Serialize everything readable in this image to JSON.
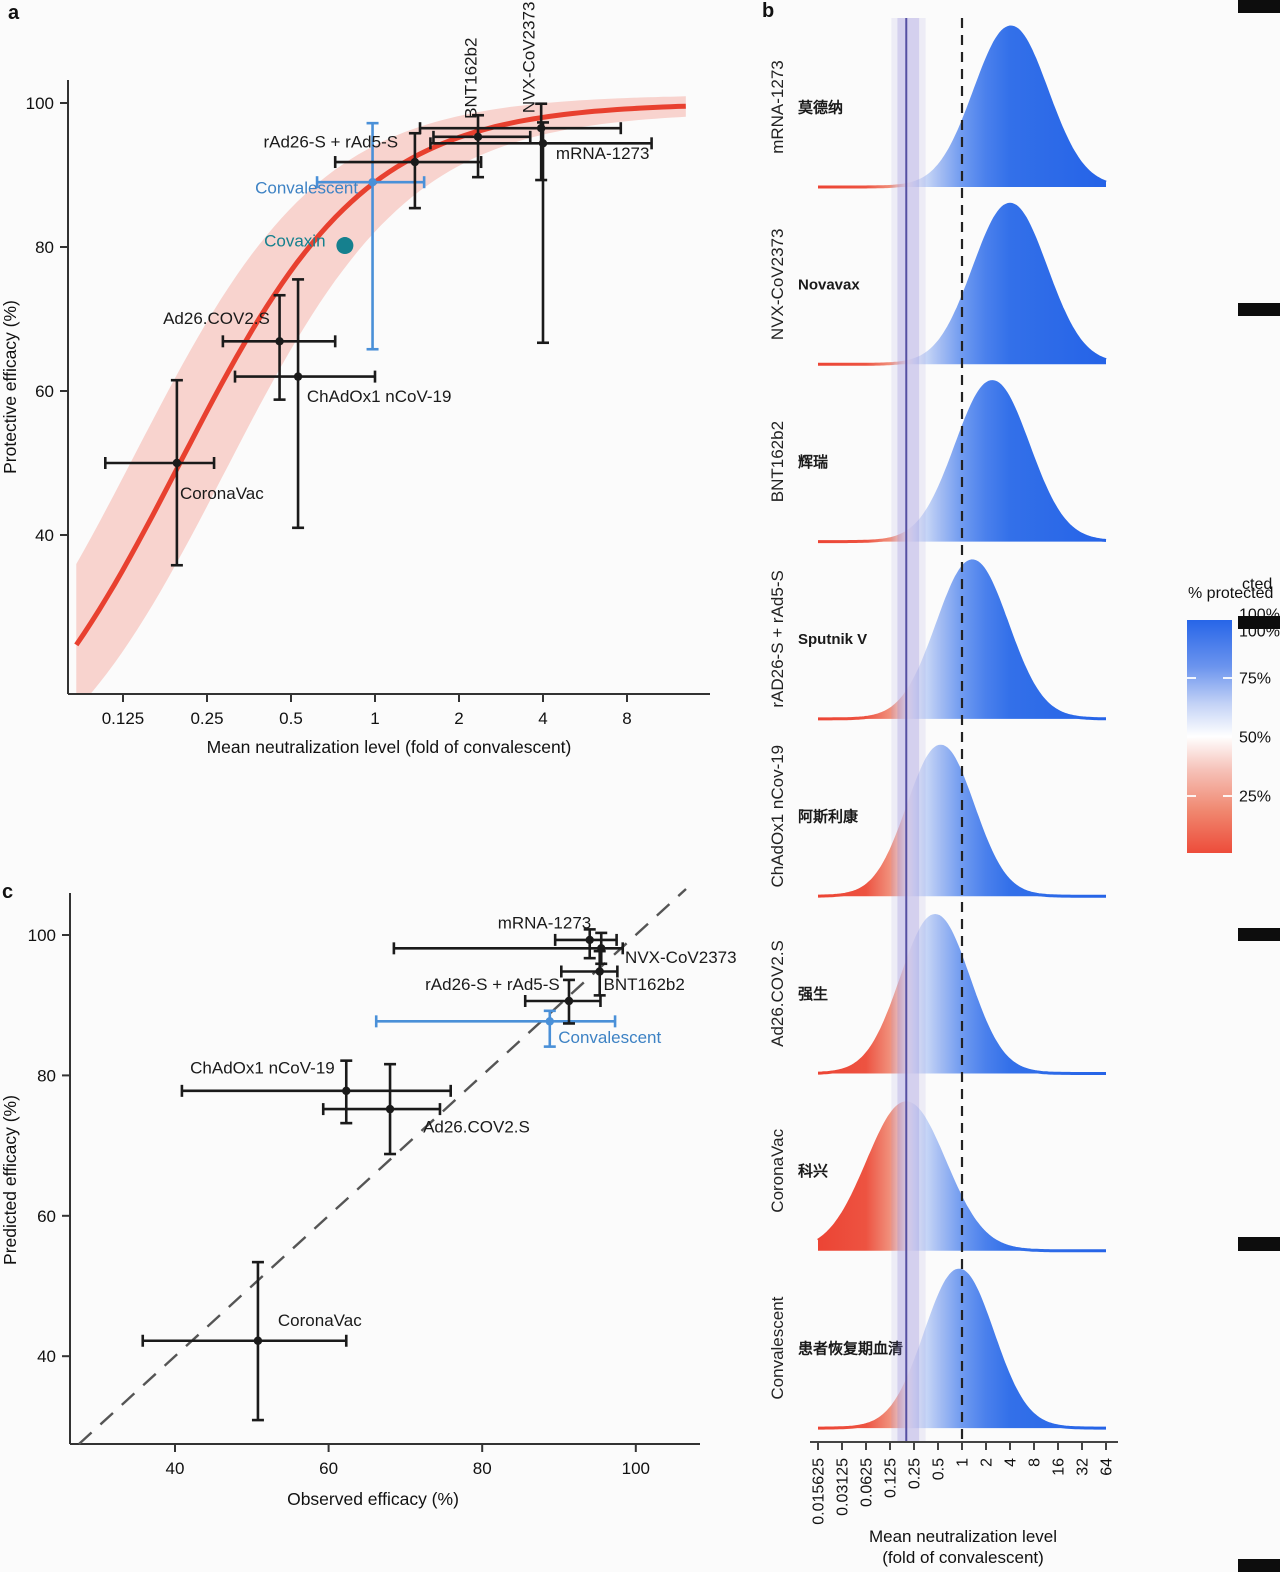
{
  "colors": {
    "curve_red": "#e8402f",
    "curve_band_pink": "#f5b9b1",
    "convalescent_blue": "#4a90d8",
    "convalescent_label_blue": "#3d82c4",
    "covaxin_teal": "#15808e",
    "ridge_blue": "#2563e7",
    "ridge_red": "#ec4434",
    "threshold_purple": "#4f4a9e",
    "threshold_band_purple": "#7a6fd0",
    "dashed_line": "#222222",
    "point_black": "#1a1a1a"
  },
  "chart_data": [
    {
      "panel_label": "a",
      "type": "scatter",
      "xlabel": "Mean neutralization level (fold of convalescent)",
      "ylabel": "Protective efficacy (%)",
      "x_scale": "log2",
      "xlim": [
        0.085,
        13
      ],
      "ylim": [
        22,
        104
      ],
      "x_ticks": [
        {
          "label": "0.125",
          "value": 0.125
        },
        {
          "label": "0.25",
          "value": 0.25
        },
        {
          "label": "0.5",
          "value": 0.5
        },
        {
          "label": "1",
          "value": 1
        },
        {
          "label": "2",
          "value": 2
        },
        {
          "label": "4",
          "value": 4
        },
        {
          "label": "8",
          "value": 8
        }
      ],
      "y_ticks": [
        {
          "label": "100",
          "value": 100
        },
        {
          "label": "80",
          "value": 80
        },
        {
          "label": "60",
          "value": 60
        },
        {
          "label": "40",
          "value": 40
        }
      ],
      "curve": {
        "model": "logistic",
        "n50": 0.2,
        "slope_k": 1.3,
        "color": "#e8402f",
        "band_color": "#f5b9b1"
      },
      "points": [
        {
          "name": "CoronaVac",
          "x": 0.195,
          "y": 50,
          "x_ci": [
            0.108,
            0.265
          ],
          "y_ci": [
            35.8,
            61.5
          ],
          "color": "#1a1a1a",
          "label": {
            "anchor": "start",
            "x": 0.2,
            "y": 45,
            "rot": 0
          }
        },
        {
          "name": "ChAdOx1 nCoV-19",
          "x": 0.53,
          "y": 62,
          "x_ci": [
            0.315,
            1.0
          ],
          "y_ci": [
            41,
            75.5
          ],
          "color": "#1a1a1a",
          "label": {
            "anchor": "start",
            "x": 0.57,
            "y": 58.5,
            "rot": 0
          }
        },
        {
          "name": "Ad26.COV2.S",
          "x": 0.455,
          "y": 66.9,
          "x_ci": [
            0.285,
            0.72
          ],
          "y_ci": [
            58.8,
            73.3
          ],
          "color": "#1a1a1a",
          "label": {
            "anchor": "end",
            "x": 0.42,
            "y": 69.3,
            "rot": 0
          }
        },
        {
          "name": "Covaxin",
          "x": 0.78,
          "y": 80.2,
          "color": "#15808e",
          "marker_r": 8.5,
          "label_color": "#15808e",
          "label": {
            "anchor": "end",
            "x": 0.665,
            "y": 80.1,
            "rot": 0
          }
        },
        {
          "name": "Convalescent",
          "x": 0.98,
          "y": 89,
          "x_ci": [
            0.62,
            1.5
          ],
          "y_ci": [
            65.8,
            97.2
          ],
          "color": "#4a90d8",
          "label_color": "#3d82c4",
          "label": {
            "anchor": "end",
            "x": 0.87,
            "y": 87.4,
            "rot": 0
          }
        },
        {
          "name": "rAd26-S + rAd5-S",
          "x": 1.39,
          "y": 91.8,
          "x_ci": [
            0.72,
            2.4
          ],
          "y_ci": [
            85.4,
            95.8
          ],
          "color": "#1a1a1a",
          "label": {
            "anchor": "end",
            "x": 1.21,
            "y": 93.8,
            "rot": 0
          }
        },
        {
          "name": "BNT162b2",
          "x": 2.34,
          "y": 95.3,
          "x_ci": [
            1.62,
            3.6
          ],
          "y_ci": [
            89.7,
            98.3
          ],
          "color": "#1a1a1a",
          "label": {
            "anchor": "start",
            "x": 2.2,
            "y": 97.8,
            "rot": -90
          }
        },
        {
          "name": "NVX-CoV2373",
          "x": 3.94,
          "y": 96.5,
          "x_ci": [
            1.45,
            7.6
          ],
          "y_ci": [
            89.3,
            99.9
          ],
          "color": "#1a1a1a",
          "label": {
            "anchor": "start",
            "x": 3.55,
            "y": 98.6,
            "rot": -90
          }
        },
        {
          "name": "mRNA-1273",
          "x": 4.0,
          "y": 94.4,
          "x_ci": [
            1.58,
            9.8
          ],
          "y_ci": [
            66.7,
            97.3
          ],
          "color": "#1a1a1a",
          "label": {
            "anchor": "start",
            "x": 4.45,
            "y": 92.2,
            "rot": 0
          }
        }
      ]
    },
    {
      "panel_label": "b",
      "type": "ridgeline",
      "xlabel_lines": [
        "Mean neutralization level",
        "(fold of convalescent)"
      ],
      "x_scale": "log2",
      "x_ticks": [
        {
          "label": "0.015625",
          "value": 0.015625
        },
        {
          "label": "0.03125",
          "value": 0.03125
        },
        {
          "label": "0.0625",
          "value": 0.0625
        },
        {
          "label": "0.125",
          "value": 0.125
        },
        {
          "label": "0.25",
          "value": 0.25
        },
        {
          "label": "0.5",
          "value": 0.5
        },
        {
          "label": "1",
          "value": 1
        },
        {
          "label": "2",
          "value": 2
        },
        {
          "label": "4",
          "value": 4
        },
        {
          "label": "8",
          "value": 8
        },
        {
          "label": "16",
          "value": 16
        },
        {
          "label": "32",
          "value": 32
        },
        {
          "label": "64",
          "value": 64
        }
      ],
      "threshold_line": 0.2,
      "threshold_band": [
        0.155,
        0.29
      ],
      "reference_line": 1,
      "rows": [
        {
          "en_label": "mRNA-1273",
          "zh_label": "莫德纳",
          "mean": 4.1,
          "sigma_log2": 1.5,
          "amp": 160
        },
        {
          "en_label": "NVX-CoV2373",
          "zh_label": "Novavax",
          "mean": 4.0,
          "sigma_log2": 1.5,
          "amp": 160
        },
        {
          "en_label": "BNT162b2",
          "zh_label": "辉瑞",
          "mean": 2.4,
          "sigma_log2": 1.5,
          "amp": 160
        },
        {
          "en_label": "rAD26-S + rAd5-S",
          "zh_label": "Sputnik V",
          "mean": 1.35,
          "sigma_log2": 1.45,
          "amp": 158
        },
        {
          "en_label": "ChAdOx1 nCov-19",
          "zh_label": "阿斯利康",
          "mean": 0.54,
          "sigma_log2": 1.35,
          "amp": 150
        },
        {
          "en_label": "Ad26.COV2.S",
          "zh_label": "强生",
          "mean": 0.46,
          "sigma_log2": 1.4,
          "amp": 158
        },
        {
          "en_label": "CoronaVac",
          "zh_label": "科兴",
          "mean": 0.2,
          "sigma_log2": 1.6,
          "amp": 148
        },
        {
          "en_label": "Convalescent",
          "zh_label": "患者恢复期血清",
          "mean": 0.92,
          "sigma_log2": 1.4,
          "amp": 158
        }
      ],
      "legend": {
        "title": "% protected",
        "title_echo": "cted",
        "tick_labels": [
          "100%",
          "100%",
          "75%",
          "50%",
          "25%"
        ]
      }
    },
    {
      "panel_label": "c",
      "type": "scatter",
      "xlabel": "Observed efficacy (%)",
      "ylabel": "Predicted efficacy (%)",
      "identity_line": true,
      "x_ticks": [
        {
          "label": "40",
          "value": 40
        },
        {
          "label": "60",
          "value": 60
        },
        {
          "label": "80",
          "value": 80
        },
        {
          "label": "100",
          "value": 100
        }
      ],
      "y_ticks": [
        {
          "label": "100",
          "value": 100
        },
        {
          "label": "80",
          "value": 80
        },
        {
          "label": "60",
          "value": 60
        },
        {
          "label": "40",
          "value": 40
        }
      ],
      "points": [
        {
          "name": "CoronaVac",
          "x": 50.8,
          "y": 42.2,
          "x_ci": [
            35.8,
            62.3
          ],
          "y_ci": [
            30.9,
            53.4
          ],
          "color": "#1a1a1a",
          "label": {
            "anchor": "start",
            "x": 53.4,
            "y": 44.3
          }
        },
        {
          "name": "Ad26.COV2.S",
          "x": 68.0,
          "y": 75.2,
          "x_ci": [
            59.3,
            74.5
          ],
          "y_ci": [
            68.8,
            81.6
          ],
          "color": "#1a1a1a",
          "label": {
            "anchor": "start",
            "x": 72.3,
            "y": 71.9
          }
        },
        {
          "name": "ChAdOx1 nCoV-19",
          "x": 62.3,
          "y": 77.8,
          "x_ci": [
            40.9,
            75.9
          ],
          "y_ci": [
            73.2,
            82.1
          ],
          "color": "#1a1a1a",
          "label": {
            "anchor": "end",
            "x": 60.8,
            "y": 80.3
          }
        },
        {
          "name": "Convalescent",
          "x": 88.8,
          "y": 87.7,
          "x_ci": [
            66.2,
            97.3
          ],
          "y_ci": [
            84.1,
            89.2
          ],
          "color": "#4a90d8",
          "label_color": "#3d82c4",
          "label": {
            "anchor": "start",
            "x": 89.9,
            "y": 84.6
          }
        },
        {
          "name": "rAd26-S + rAd5-S",
          "x": 91.3,
          "y": 90.6,
          "x_ci": [
            85.6,
            95.4
          ],
          "y_ci": [
            87.4,
            93.6
          ],
          "color": "#1a1a1a",
          "label": {
            "anchor": "end",
            "x": 90.1,
            "y": 92.2
          }
        },
        {
          "name": "BNT162b2",
          "x": 95.3,
          "y": 94.8,
          "x_ci": [
            90.3,
            97.6
          ],
          "y_ci": [
            91.4,
            97.7
          ],
          "color": "#1a1a1a",
          "label": {
            "anchor": "start",
            "x": 95.8,
            "y": 92.2
          }
        },
        {
          "name": "NVX-CoV2373",
          "x": 95.5,
          "y": 98.1,
          "x_ci": [
            68.5,
            98.3
          ],
          "y_ci": [
            95.9,
            100.3
          ],
          "color": "#1a1a1a",
          "label": {
            "anchor": "start",
            "x": 98.6,
            "y": 96.0
          }
        },
        {
          "name": "mRNA-1273",
          "x": 94.0,
          "y": 99.3,
          "x_ci": [
            89.5,
            97.5
          ],
          "y_ci": [
            96.7,
            100.8
          ],
          "color": "#1a1a1a",
          "label": {
            "anchor": "end",
            "x": 94.2,
            "y": 100.9
          }
        }
      ]
    }
  ]
}
